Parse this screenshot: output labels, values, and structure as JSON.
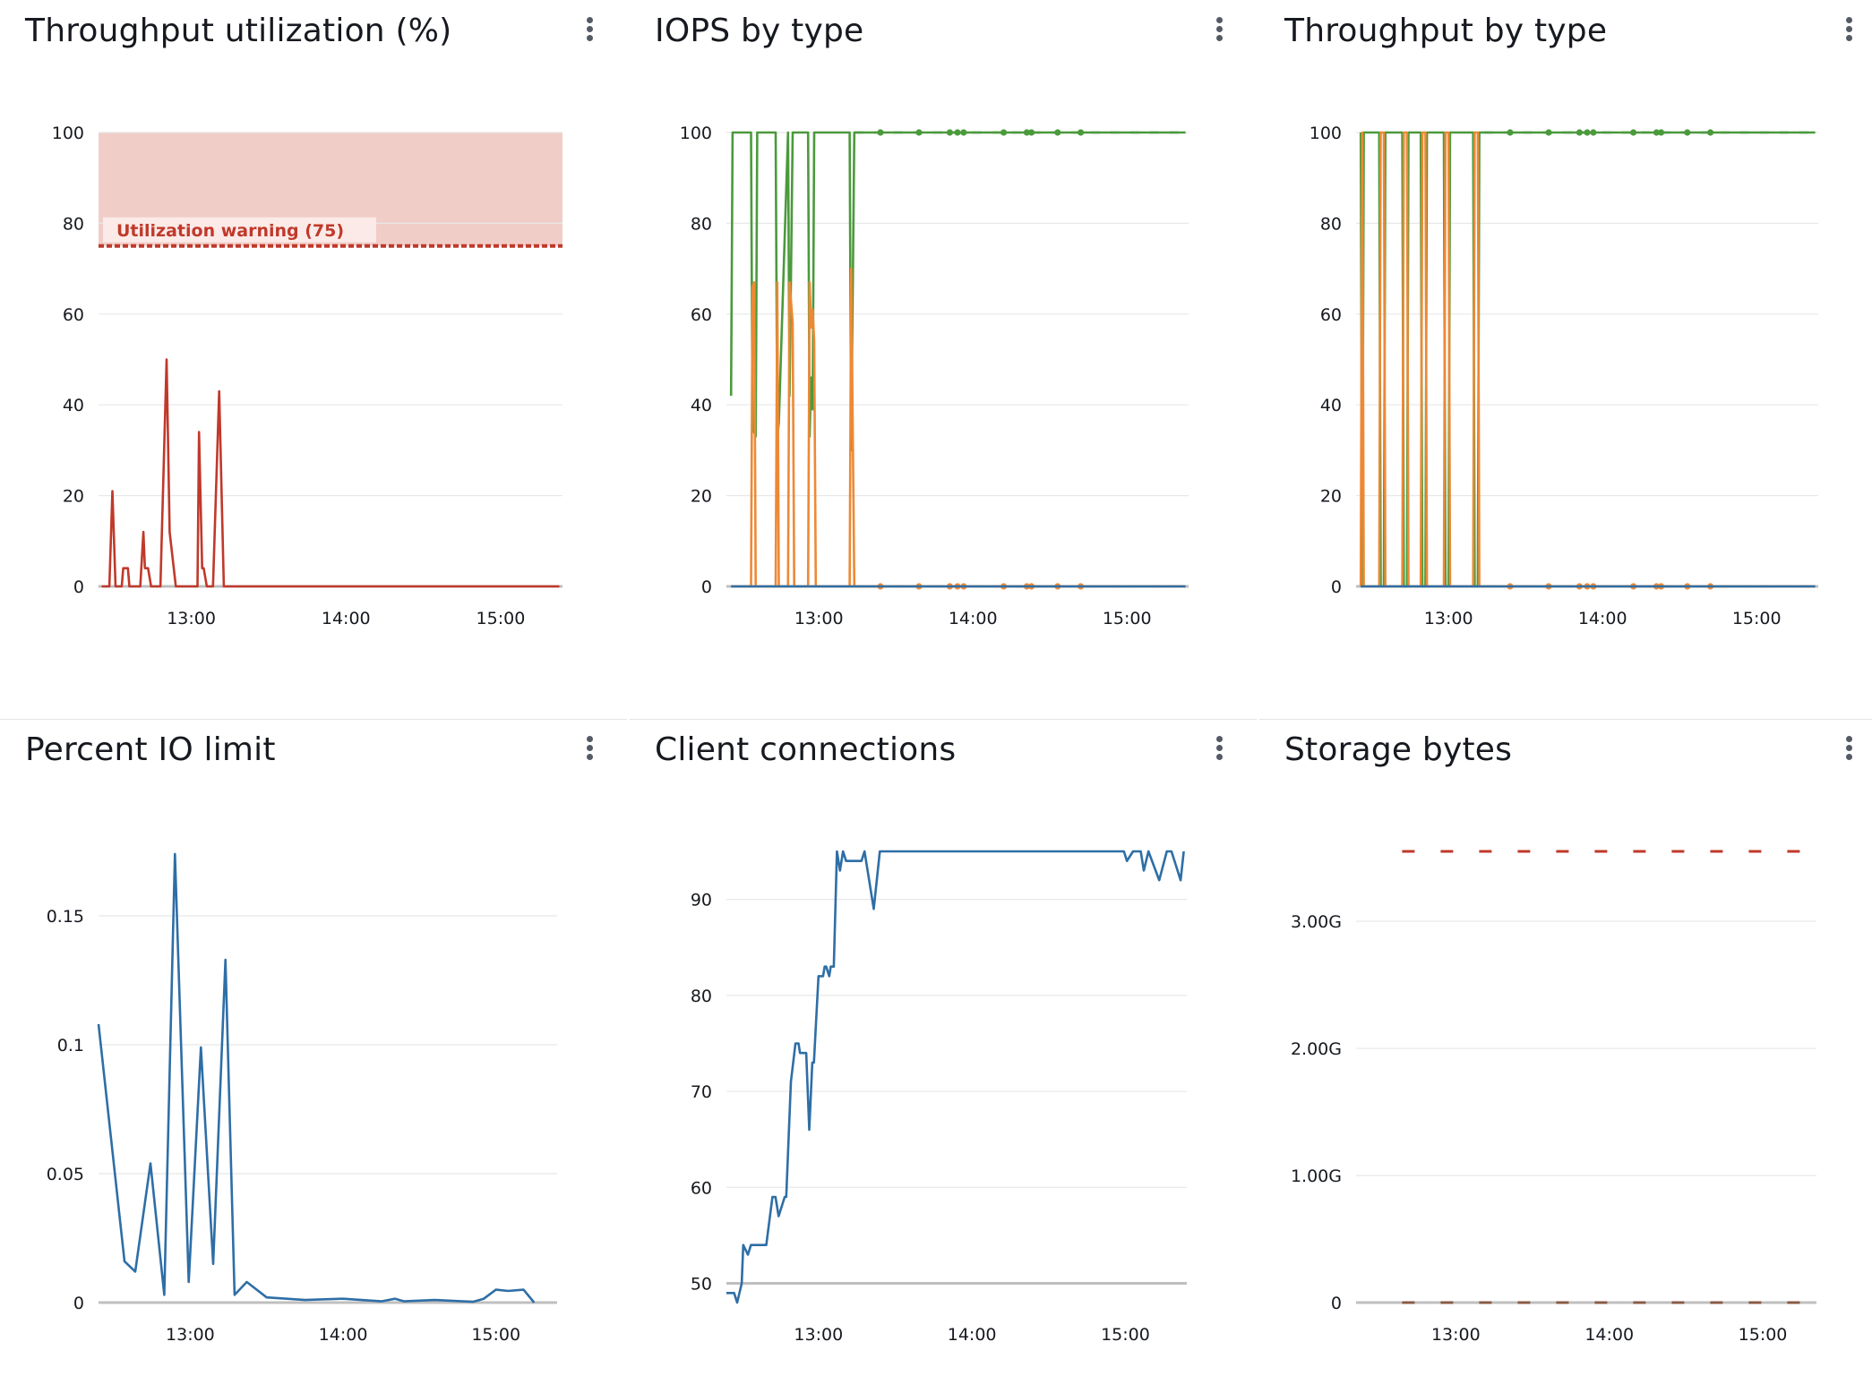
{
  "colors": {
    "red": "#c0392b",
    "green": "#4b9a3c",
    "orange": "#ed8936",
    "blue": "#2e6ea6",
    "grid": "#e8e8e8",
    "band": "#f1cdc7"
  },
  "panels": [
    {
      "id": "throughput-utilization",
      "title": "Throughput utilization (%)",
      "menu_icon": "kebab-menu-icon",
      "chart_data": {
        "type": "line",
        "ylim": [
          0,
          100
        ],
        "yticks": [
          "0",
          "20",
          "40",
          "60",
          "80",
          "100"
        ],
        "yvalues": [
          0,
          20,
          40,
          60,
          80,
          100
        ],
        "xlim": [
          12.4,
          15.4
        ],
        "xticks": [
          "13:00",
          "14:00",
          "15:00"
        ],
        "xtickvalues": [
          13,
          14,
          15
        ],
        "threshold": {
          "label": "Utilization warning (75)",
          "value": 75,
          "band": [
            75,
            100
          ]
        },
        "series": [
          {
            "color": "red",
            "x": [
              12.42,
              12.47,
              12.49,
              12.51,
              12.55,
              12.56,
              12.59,
              12.6,
              12.67,
              12.69,
              12.7,
              12.72,
              12.74,
              12.8,
              12.84,
              12.86,
              12.9,
              12.97,
              13.04,
              13.05,
              13.07,
              13.08,
              13.1,
              13.14,
              13.18,
              13.21,
              13.25,
              13.5,
              14.0,
              14.5,
              15.0,
              15.38
            ],
            "y": [
              0,
              0,
              21,
              0,
              0,
              4,
              4,
              0,
              0,
              12,
              4,
              4,
              0,
              0,
              50,
              12,
              0,
              0,
              0,
              34,
              4,
              4,
              0,
              0,
              43,
              0,
              0,
              0,
              0,
              0,
              0,
              0
            ]
          }
        ]
      }
    },
    {
      "id": "iops-by-type",
      "title": "IOPS by type",
      "menu_icon": "kebab-menu-icon",
      "chart_data": {
        "type": "line",
        "ylim": [
          0,
          100
        ],
        "yticks": [
          "0",
          "20",
          "40",
          "60",
          "80",
          "100"
        ],
        "yvalues": [
          0,
          20,
          40,
          60,
          80,
          100
        ],
        "xlim": [
          12.4,
          15.4
        ],
        "xticks": [
          "13:00",
          "14:00",
          "15:00"
        ],
        "xtickvalues": [
          13,
          14,
          15
        ],
        "series": [
          {
            "color": "green",
            "x": [
              12.43,
              12.44,
              12.45,
              12.56,
              12.57,
              12.59,
              12.6,
              12.61,
              12.62,
              12.72,
              12.73,
              12.74,
              12.8,
              12.81,
              12.83,
              12.84,
              12.85,
              12.93,
              12.94,
              12.95,
              12.96,
              12.97,
              12.98,
              13.07,
              13.08,
              13.09,
              13.2,
              13.21,
              13.23,
              13.4,
              14.0,
              14.5,
              15.0,
              15.38
            ],
            "y": [
              42,
              100,
              100,
              100,
              35,
              33,
              100,
              100,
              100,
              100,
              33,
              36,
              100,
              42,
              100,
              100,
              100,
              100,
              33,
              46,
              39,
              100,
              100,
              100,
              100,
              100,
              100,
              30,
              100,
              100,
              100,
              100,
              100,
              100
            ]
          },
          {
            "color": "orange",
            "x": [
              12.43,
              12.56,
              12.57,
              12.58,
              12.59,
              12.6,
              12.72,
              12.73,
              12.74,
              12.8,
              12.81,
              12.83,
              12.84,
              12.85,
              12.93,
              12.94,
              12.95,
              12.96,
              12.97,
              12.98,
              13.2,
              13.21,
              13.23,
              13.4,
              14.0,
              14.5,
              15.0,
              15.38
            ],
            "y": [
              0,
              0,
              66,
              67,
              0,
              0,
              0,
              67,
              0,
              0,
              67,
              58,
              0,
              0,
              0,
              67,
              57,
              61,
              54,
              0,
              0,
              70,
              0,
              0,
              0,
              0,
              0,
              0
            ]
          },
          {
            "color": "blue",
            "x": [
              12.43,
              15.38
            ],
            "y": [
              0,
              0
            ]
          }
        ]
      }
    },
    {
      "id": "throughput-by-type",
      "title": "Throughput by type",
      "menu_icon": "kebab-menu-icon",
      "chart_data": {
        "type": "line",
        "ylim": [
          0,
          100
        ],
        "yticks": [
          "0",
          "20",
          "40",
          "60",
          "80",
          "100"
        ],
        "yvalues": [
          0,
          20,
          40,
          60,
          80,
          100
        ],
        "xlim": [
          12.4,
          15.4
        ],
        "xticks": [
          "13:00",
          "14:00",
          "15:00"
        ],
        "xtickvalues": [
          13,
          14,
          15
        ],
        "series": [
          {
            "color": "green",
            "x": [
              12.43,
              12.44,
              12.45,
              12.55,
              12.56,
              12.58,
              12.59,
              12.7,
              12.71,
              12.73,
              12.74,
              12.82,
              12.83,
              12.85,
              12.86,
              12.97,
              12.98,
              13.0,
              13.01,
              13.16,
              13.17,
              13.19,
              13.2,
              13.4,
              14.0,
              14.5,
              15.0,
              15.38
            ],
            "y": [
              100,
              0,
              100,
              100,
              0,
              0,
              100,
              100,
              0,
              0,
              100,
              100,
              0,
              0,
              100,
              100,
              0,
              0,
              100,
              100,
              0,
              0,
              100,
              100,
              100,
              100,
              100,
              100
            ]
          },
          {
            "color": "orange",
            "x": [
              12.43,
              12.44,
              12.45,
              12.55,
              12.56,
              12.58,
              12.59,
              12.7,
              12.71,
              12.73,
              12.74,
              12.82,
              12.83,
              12.85,
              12.86,
              12.97,
              12.98,
              13.0,
              13.01,
              13.16,
              13.17,
              13.19,
              13.2,
              13.4,
              14.0,
              14.5,
              15.0,
              15.38
            ],
            "y": [
              0,
              100,
              0,
              0,
              100,
              100,
              0,
              0,
              100,
              100,
              0,
              0,
              100,
              100,
              0,
              0,
              100,
              100,
              0,
              0,
              100,
              100,
              0,
              0,
              0,
              0,
              0,
              0
            ]
          },
          {
            "color": "blue",
            "x": [
              12.43,
              15.38
            ],
            "y": [
              0,
              0
            ]
          }
        ]
      }
    },
    {
      "id": "percent-io-limit",
      "title": "Percent IO limit",
      "menu_icon": "kebab-menu-icon",
      "chart_data": {
        "type": "line",
        "ylim": [
          0,
          0.175
        ],
        "yticks": [
          "0",
          "0.05",
          "0.1",
          "0.15"
        ],
        "yvalues": [
          0,
          0.05,
          0.1,
          0.15
        ],
        "xlim": [
          12.4,
          15.4
        ],
        "xticks": [
          "13:00",
          "14:00",
          "15:00"
        ],
        "xtickvalues": [
          13,
          14,
          15
        ],
        "series": [
          {
            "color": "blue",
            "x": [
              12.4,
              12.57,
              12.64,
              12.74,
              12.83,
              12.9,
              12.99,
              13.07,
              13.15,
              13.23,
              13.29,
              13.37,
              13.5,
              13.75,
              14.0,
              14.25,
              14.34,
              14.4,
              14.6,
              14.85,
              14.92,
              15.0,
              15.08,
              15.18,
              15.25
            ],
            "y": [
              0.108,
              0.016,
              0.012,
              0.054,
              0.003,
              0.174,
              0.008,
              0.099,
              0.015,
              0.133,
              0.003,
              0.008,
              0.002,
              0.001,
              0.0015,
              0.0005,
              0.0015,
              0.0005,
              0.001,
              0.0003,
              0.0015,
              0.005,
              0.0045,
              0.005,
              0.0
            ]
          }
        ]
      }
    },
    {
      "id": "client-connections",
      "title": "Client connections",
      "menu_icon": "kebab-menu-icon",
      "chart_data": {
        "type": "line",
        "ylim": [
          48,
          95
        ],
        "yticks": [
          "50",
          "60",
          "70",
          "80",
          "90"
        ],
        "yvalues": [
          50,
          60,
          70,
          80,
          90
        ],
        "xlim": [
          12.4,
          15.4
        ],
        "xticks": [
          "13:00",
          "14:00",
          "15:00"
        ],
        "xtickvalues": [
          13,
          14,
          15
        ],
        "series": [
          {
            "color": "blue",
            "x": [
              12.4,
              12.45,
              12.47,
              12.5,
              12.51,
              12.54,
              12.56,
              12.66,
              12.7,
              12.72,
              12.74,
              12.78,
              12.79,
              12.82,
              12.85,
              12.87,
              12.88,
              12.92,
              12.94,
              12.96,
              12.97,
              13.0,
              13.03,
              13.04,
              13.05,
              13.07,
              13.08,
              13.1,
              13.12,
              13.14,
              13.16,
              13.18,
              13.22,
              13.28,
              13.3,
              13.36,
              13.4,
              13.8,
              14.0,
              14.5,
              14.99,
              15.01,
              15.05,
              15.1,
              15.12,
              15.15,
              15.22,
              15.27,
              15.3,
              15.36,
              15.38
            ],
            "y": [
              49,
              49,
              48,
              50,
              54,
              53,
              54,
              54,
              59,
              59,
              57,
              59,
              59,
              71,
              75,
              75,
              74,
              74,
              66,
              73,
              73,
              82,
              82,
              83,
              83,
              82,
              83,
              83,
              95,
              93,
              95,
              94,
              94,
              94,
              95,
              89,
              95,
              95,
              95,
              95,
              95,
              94,
              95,
              95,
              93,
              95,
              92,
              95,
              95,
              92,
              95
            ]
          }
        ]
      }
    },
    {
      "id": "storage-bytes",
      "title": "Storage bytes",
      "menu_icon": "kebab-menu-icon",
      "chart_data": {
        "type": "line",
        "ylim": [
          0,
          3.55
        ],
        "yticks": [
          "0",
          "1.00G",
          "2.00G",
          "3.00G"
        ],
        "yvalues": [
          0,
          1,
          2,
          3
        ],
        "xlim": [
          12.35,
          15.35
        ],
        "xticks": [
          "13:00",
          "14:00",
          "15:00"
        ],
        "xtickvalues": [
          13,
          14,
          15
        ],
        "series": [
          {
            "color": "red",
            "dashed": true,
            "x": [
              12.65,
              15.28
            ],
            "y": [
              3.55,
              3.55
            ]
          },
          {
            "color": "brown",
            "dashed": true,
            "x": [
              12.65,
              15.28
            ],
            "y": [
              0,
              0
            ]
          }
        ]
      }
    }
  ]
}
